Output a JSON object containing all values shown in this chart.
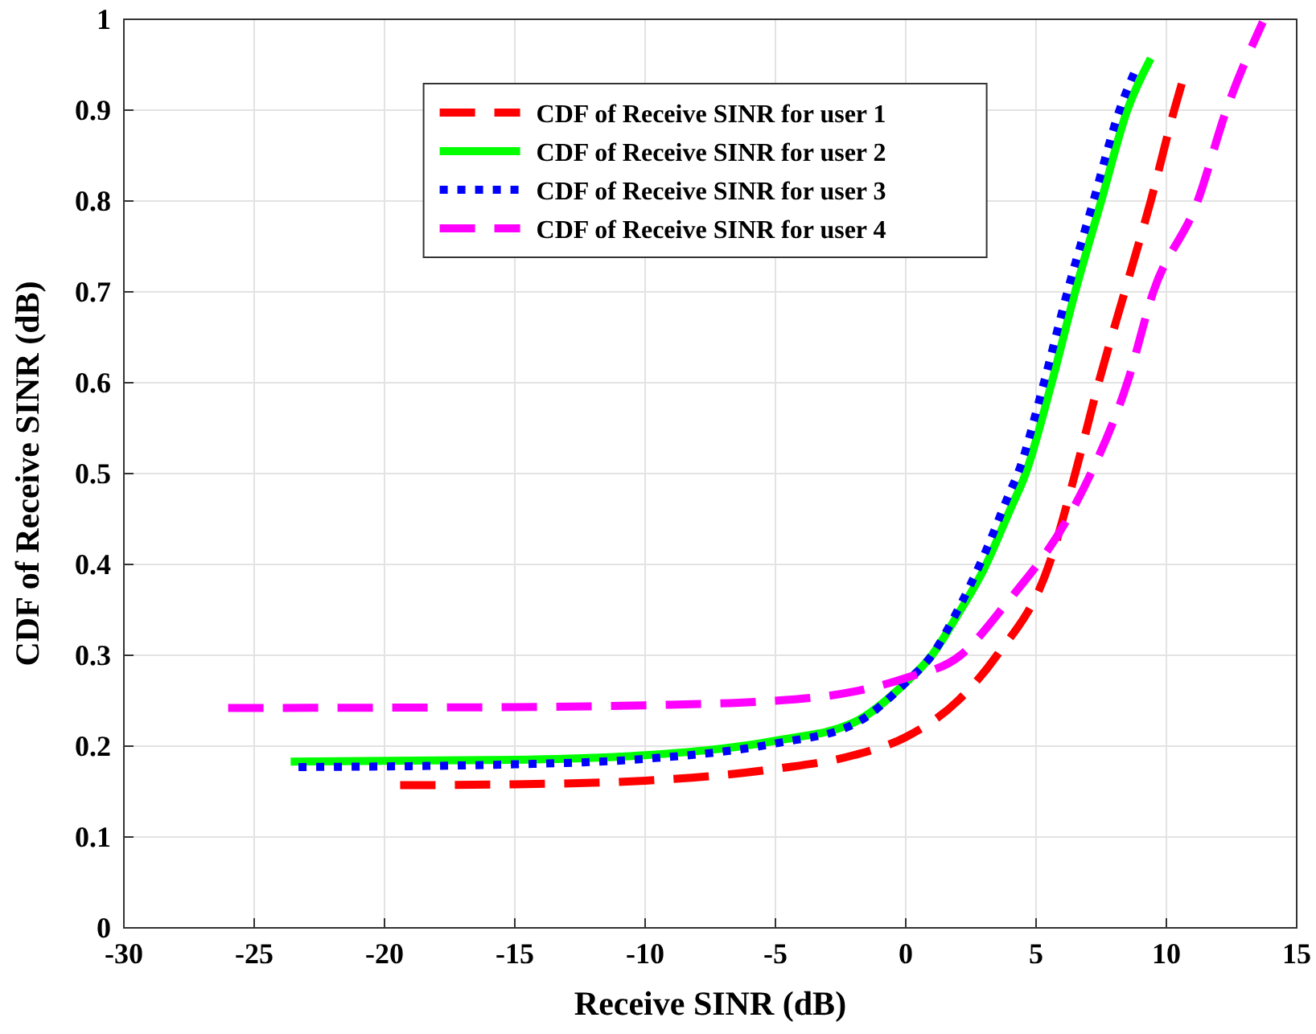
{
  "chart_data": {
    "type": "line",
    "xlabel": "Receive SINR (dB)",
    "ylabel": "CDF of Receive SINR (dB)",
    "xlim": [
      -30,
      15
    ],
    "xticks": [
      -30,
      -25,
      -20,
      -15,
      -10,
      -5,
      0,
      5,
      10,
      15
    ],
    "ylim": [
      0,
      1
    ],
    "yticks": [
      0,
      0.1,
      0.2,
      0.3,
      0.4,
      0.5,
      0.6,
      0.7,
      0.8,
      0.9,
      1
    ],
    "grid": true,
    "legend": "top",
    "series": [
      {
        "name": "CDF of Receive SINR for user 1",
        "color": "#ff0000",
        "line_style": "dashed",
        "x": [
          -19.4,
          -15,
          -10,
          -5,
          -2,
          0,
          2,
          3.5,
          5.5,
          6.5,
          7.4,
          8.4,
          9.4,
          10.3,
          10.6
        ],
        "values": [
          0.157,
          0.158,
          0.162,
          0.175,
          0.19,
          0.21,
          0.25,
          0.3,
          0.4,
          0.5,
          0.6,
          0.7,
          0.8,
          0.9,
          0.93
        ]
      },
      {
        "name": "CDF of Receive SINR for user 2",
        "color": "#00ff00",
        "line_style": "solid",
        "x": [
          -23.6,
          -15,
          -10,
          -5,
          -2,
          0,
          1,
          2,
          3,
          4,
          4.6,
          5.6,
          6.5,
          7.5,
          8.5,
          9.4
        ],
        "values": [
          0.183,
          0.185,
          0.19,
          0.206,
          0.226,
          0.27,
          0.3,
          0.345,
          0.395,
          0.46,
          0.5,
          0.6,
          0.7,
          0.8,
          0.9,
          0.957
        ]
      },
      {
        "name": "CDF of Receive SINR for user 3",
        "color": "#0000ff",
        "line_style": "dotted",
        "x": [
          -23.3,
          -15,
          -10,
          -5,
          -2,
          0,
          1,
          2,
          3,
          4,
          4.3,
          5.3,
          6.2,
          7.2,
          8.2,
          8.9
        ],
        "values": [
          0.177,
          0.18,
          0.186,
          0.203,
          0.224,
          0.27,
          0.3,
          0.35,
          0.41,
          0.48,
          0.5,
          0.6,
          0.7,
          0.8,
          0.9,
          0.95
        ]
      },
      {
        "name": "CDF of Receive SINR for user 4",
        "color": "#ff00ff",
        "line_style": "dashed",
        "x": [
          -26,
          -15,
          -10,
          -5,
          -2,
          0,
          2.1,
          3.8,
          6.2,
          7.1,
          8.5,
          9.5,
          11.2,
          12.3,
          13.7
        ],
        "values": [
          0.242,
          0.243,
          0.245,
          0.25,
          0.26,
          0.275,
          0.3,
          0.355,
          0.45,
          0.5,
          0.6,
          0.7,
          0.8,
          0.9,
          0.997
        ]
      }
    ]
  }
}
